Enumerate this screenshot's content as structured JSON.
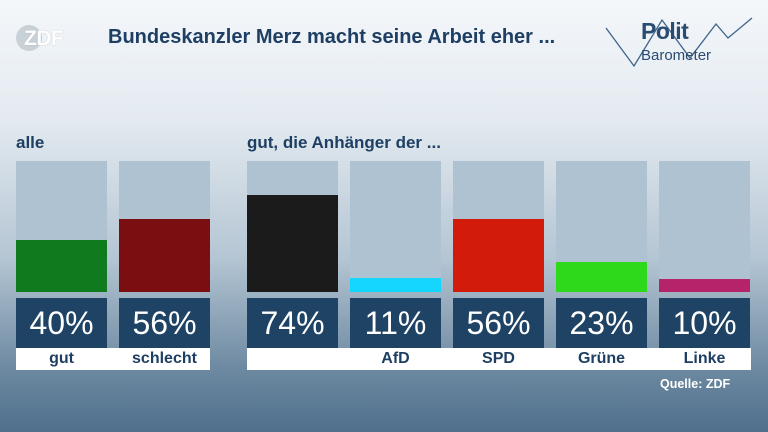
{
  "header": {
    "logo_text": "ZDF",
    "title": "Bundeskanzler Merz macht seine Arbeit eher ...",
    "brand_line1": "Polit",
    "brand_line2": "Barometer"
  },
  "groups": {
    "all_label": "alle",
    "supporters_label": "gut, die Anhänger der ..."
  },
  "source": "Quelle: ZDF",
  "chart_data": {
    "type": "bar",
    "title": "Bundeskanzler Merz macht seine Arbeit eher ...",
    "unit": "%",
    "ylim": [
      0,
      100
    ],
    "series": [
      {
        "name": "alle",
        "categories": [
          "gut",
          "schlecht"
        ],
        "values": [
          40,
          56
        ]
      },
      {
        "name": "gut, die Anhänger der ...",
        "categories": [
          "",
          "AfD",
          "SPD",
          "Grüne",
          "Linke"
        ],
        "values": [
          74,
          11,
          56,
          23,
          10
        ]
      }
    ],
    "value_labels": [
      "40%",
      "56%",
      "74%",
      "11%",
      "56%",
      "23%",
      "10%"
    ],
    "colors": [
      "#0f7a1e",
      "#7a0e10",
      "#1b1b1b",
      "#15d6ff",
      "#d31b0b",
      "#2ed81a",
      "#b5236b"
    ]
  }
}
